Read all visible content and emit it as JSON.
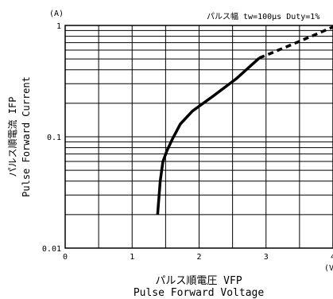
{
  "chart_data": {
    "type": "line",
    "title": "パルス幅 tw=100μs Duty=1%",
    "y_unit": "(A)",
    "x_unit": "(V)",
    "xlabel_jp": "パルス順電圧 VFP",
    "xlabel_en": "Pulse Forward Voltage",
    "ylabel_jp": "パルス順電流 IFP",
    "ylabel_en": "Pulse Forward Current",
    "xlim": [
      0,
      4
    ],
    "ylim": [
      0.01,
      1
    ],
    "y_scale": "log",
    "x_ticks": [
      "0",
      "1",
      "2",
      "3",
      "4"
    ],
    "y_ticks": [
      "1",
      "0.1",
      "0.01"
    ],
    "grid": true,
    "series": [
      {
        "style": "solid",
        "x": [
          1.38,
          1.42,
          1.46,
          1.52,
          1.6,
          1.72,
          1.9,
          2.2,
          2.55,
          2.9
        ],
        "y": [
          0.02,
          0.04,
          0.06,
          0.075,
          0.095,
          0.13,
          0.17,
          0.23,
          0.33,
          0.51
        ]
      },
      {
        "style": "dashed",
        "x": [
          2.9,
          3.3,
          3.7,
          4.0
        ],
        "y": [
          0.51,
          0.64,
          0.81,
          0.97
        ]
      }
    ]
  }
}
